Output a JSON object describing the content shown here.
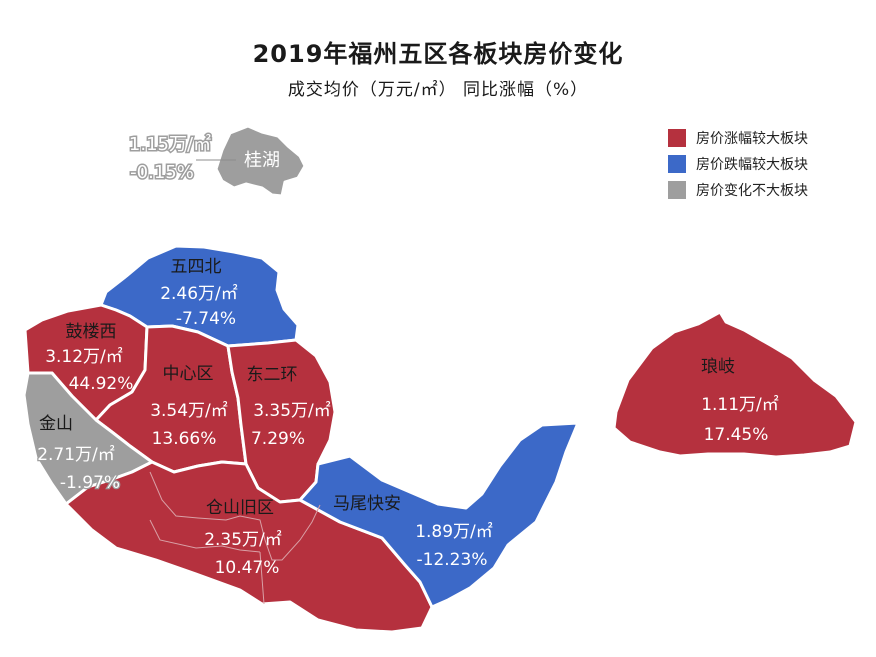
{
  "title": "2019年福州五区各板块房价变化",
  "subtitle": "成交均价（万元/㎡） 同比涨幅（%）",
  "colors": {
    "up": "#b5313e",
    "down": "#3c69c8",
    "flat": "#9e9e9e",
    "border": "#ffffff"
  },
  "legend": [
    {
      "label": "房价涨幅较大板块",
      "category": "up"
    },
    {
      "label": "房价跌幅较大板块",
      "category": "down"
    },
    {
      "label": "房价变化不大板块",
      "category": "flat"
    }
  ],
  "regions": {
    "guihu": {
      "name": "桂湖",
      "price": "1.15万/㎡",
      "change": "-0.15%",
      "category": "flat"
    },
    "wusibei": {
      "name": "五四北",
      "price": "2.46万/㎡",
      "change": "-7.74%",
      "category": "down"
    },
    "gulouxi": {
      "name": "鼓楼西",
      "price": "3.12万/㎡",
      "change": "44.92%",
      "category": "up"
    },
    "zhongxin": {
      "name": "中心区",
      "price": "3.54万/㎡",
      "change": "13.66%",
      "category": "up"
    },
    "dongerhuan": {
      "name": "东二环",
      "price": "3.35万/㎡",
      "change": "7.29%",
      "category": "up"
    },
    "jinshan": {
      "name": "金山",
      "price": "2.71万/㎡",
      "change": "-1.97%",
      "category": "flat"
    },
    "cangshan": {
      "name": "仓山旧区",
      "price": "2.35万/㎡",
      "change": "10.47%",
      "category": "up"
    },
    "mawei": {
      "name": "马尾快安",
      "price": "1.89万/㎡",
      "change": "-12.23%",
      "category": "down"
    },
    "langqi": {
      "name": "琅岐",
      "price": "1.11万/㎡",
      "change": "17.45%",
      "category": "up"
    }
  }
}
